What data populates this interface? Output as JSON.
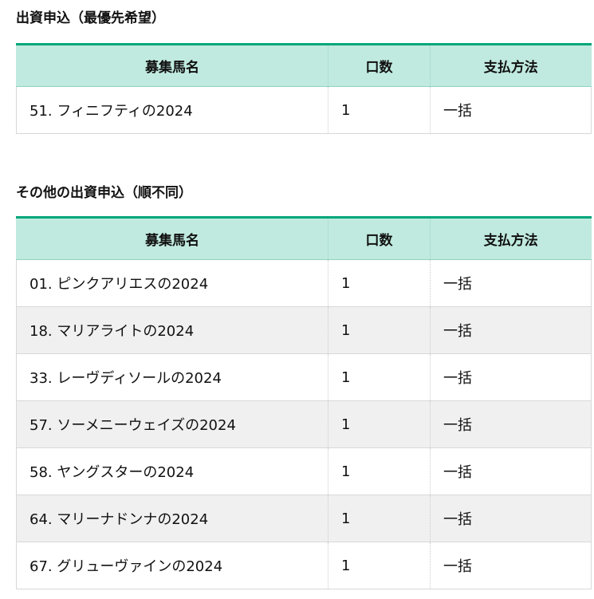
{
  "section1": {
    "title": "出資申込（最優先希望）",
    "headers": [
      "募集馬名",
      "口数",
      "支払方法"
    ],
    "rows": [
      {
        "name": "51. フィニフティの2024",
        "units": "1",
        "payment": "一括"
      }
    ]
  },
  "section2": {
    "title": "その他の出資申込（順不同）",
    "headers": [
      "募集馬名",
      "口数",
      "支払方法"
    ],
    "rows": [
      {
        "name": "01. ピンクアリエスの2024",
        "units": "1",
        "payment": "一括"
      },
      {
        "name": "18. マリアライトの2024",
        "units": "1",
        "payment": "一括"
      },
      {
        "name": "33. レーヴディソールの2024",
        "units": "1",
        "payment": "一括"
      },
      {
        "name": "57. ソーメニーウェイズの2024",
        "units": "1",
        "payment": "一括"
      },
      {
        "name": "58. ヤングスターの2024",
        "units": "1",
        "payment": "一括"
      },
      {
        "name": "64. マリーナドンナの2024",
        "units": "1",
        "payment": "一括"
      },
      {
        "name": "67. グリューヴァインの2024",
        "units": "1",
        "payment": "一括"
      }
    ]
  },
  "colors": {
    "header_bg": "#c0eadf",
    "header_accent": "#00a67a",
    "stripe": "#f0f0f0"
  }
}
